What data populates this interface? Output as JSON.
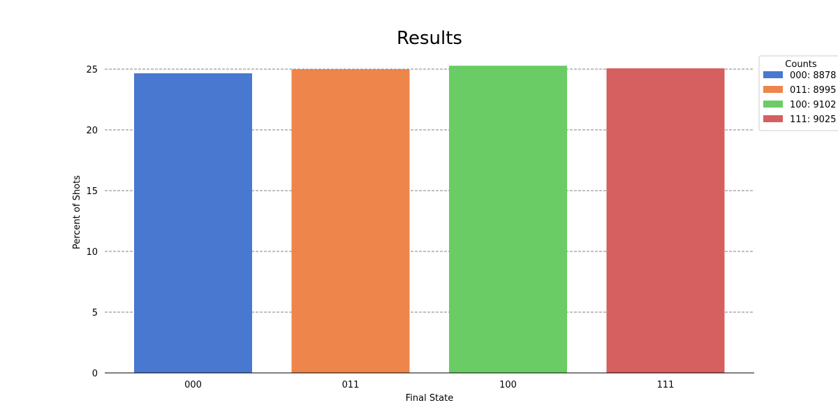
{
  "chart_data": {
    "type": "bar",
    "title": "Results",
    "xlabel": "Final State",
    "ylabel": "Percent of Shots",
    "categories": [
      "000",
      "011",
      "100",
      "111"
    ],
    "values": [
      24.66,
      24.99,
      25.28,
      25.07
    ],
    "colors": [
      "#4878d0",
      "#ee854a",
      "#6acc64",
      "#d65f5f"
    ],
    "ylim": [
      0,
      25.95
    ],
    "yticks": [
      0,
      5,
      10,
      15,
      20,
      25
    ],
    "grid": "y-dashed",
    "legend": {
      "title": "Counts",
      "placement": "top-right-outside",
      "entries": [
        "000: 8878",
        "011: 8995",
        "100: 9102",
        "111: 9025"
      ]
    }
  }
}
